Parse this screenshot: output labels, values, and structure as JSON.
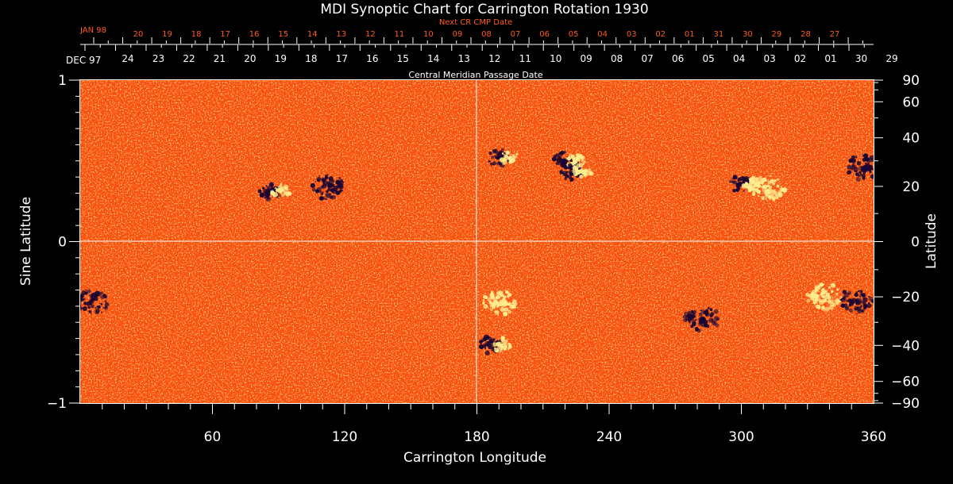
{
  "chart_data": {
    "type": "heatmap",
    "title": "MDI Synoptic Chart for Carrington Rotation 1930",
    "xlabel": "Carrington Longitude",
    "ylabel_left": "Sine Latitude",
    "ylabel_right": "Latitude",
    "xlim": [
      0,
      360
    ],
    "ylim": [
      -1,
      1
    ],
    "x_ticks": [
      "60",
      "120",
      "180",
      "240",
      "300",
      "360"
    ],
    "y_ticks_left": [
      "1",
      "0",
      "−1"
    ],
    "y_ticks_right": [
      "90",
      "60",
      "40",
      "20",
      "0",
      "−20",
      "−40",
      "−60",
      "−90"
    ],
    "y_ticks_right_values": [
      90,
      60,
      40,
      20,
      0,
      -20,
      -40,
      -60,
      -90
    ],
    "top_axis_title": "Central Meridian Passage Date",
    "top_axis_start_label": "DEC 97",
    "top_axis_dates": [
      "24",
      "23",
      "22",
      "21",
      "20",
      "19",
      "18",
      "17",
      "16",
      "15",
      "14",
      "13",
      "12",
      "11",
      "10",
      "09",
      "08",
      "07",
      "06",
      "05",
      "04",
      "03",
      "02",
      "01",
      "30",
      "29"
    ],
    "next_axis_title": "Next CR CMP Date",
    "next_axis_start_label": "JAN 98",
    "next_axis_dates": [
      "20",
      "19",
      "18",
      "17",
      "16",
      "15",
      "14",
      "13",
      "12",
      "11",
      "10",
      "09",
      "08",
      "07",
      "06",
      "05",
      "04",
      "03",
      "02",
      "01",
      "31",
      "30",
      "29",
      "28",
      "27"
    ],
    "regions": [
      {
        "lon": 88,
        "sinlat": 0.31,
        "polarity": "bipolar"
      },
      {
        "lon": 112,
        "sinlat": 0.34,
        "polarity": "negative"
      },
      {
        "lon": 192,
        "sinlat": 0.52,
        "polarity": "bipolar"
      },
      {
        "lon": 222,
        "sinlat": 0.5,
        "polarity": "bipolar"
      },
      {
        "lon": 225,
        "sinlat": 0.43,
        "polarity": "bipolar"
      },
      {
        "lon": 302,
        "sinlat": 0.36,
        "polarity": "bipolar"
      },
      {
        "lon": 312,
        "sinlat": 0.33,
        "polarity": "positive"
      },
      {
        "lon": 355,
        "sinlat": 0.46,
        "polarity": "negative"
      },
      {
        "lon": 6,
        "sinlat": -0.37,
        "polarity": "negative"
      },
      {
        "lon": 188,
        "sinlat": -0.64,
        "polarity": "bipolar"
      },
      {
        "lon": 190,
        "sinlat": -0.38,
        "polarity": "positive"
      },
      {
        "lon": 282,
        "sinlat": -0.48,
        "polarity": "negative"
      },
      {
        "lon": 338,
        "sinlat": -0.34,
        "polarity": "positive"
      },
      {
        "lon": 352,
        "sinlat": -0.37,
        "polarity": "negative"
      }
    ]
  },
  "colors": {
    "background": "#000000",
    "field_base": "#ff4a0c",
    "positive": "#ffee90",
    "negative": "#1a0633",
    "axes": "#ffffff",
    "red_text": "#ff5a1e"
  }
}
